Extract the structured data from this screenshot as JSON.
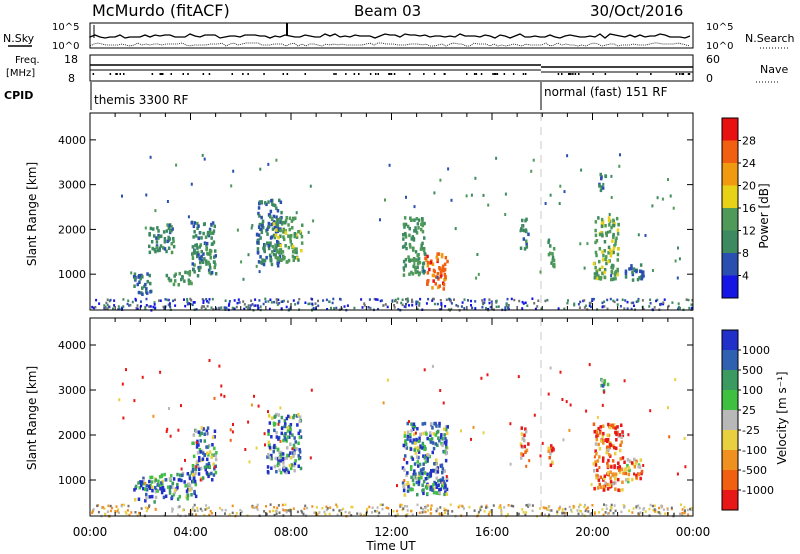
{
  "header": {
    "station": "McMurdo (fitACF)",
    "beam": "Beam 03",
    "date": "30/Oct/2016"
  },
  "top_panels": {
    "nsky_label": "N.Sky",
    "nsearch_label": "N.Search",
    "freq_label_1": "Freq.",
    "freq_label_2": "[MHz]",
    "nave_label": "Nave",
    "cpid_label": "CPID",
    "cpid_first": "themis 3300 RF",
    "cpid_second": "normal (fast) 151 RF",
    "nsky_ticks": [
      "10^5",
      "10^0"
    ],
    "nsearch_ticks": [
      "10^5",
      "10^0"
    ],
    "freq_ticks": [
      "18",
      "8"
    ],
    "nave_ticks": [
      "60",
      "0"
    ]
  },
  "colors": {
    "power_scale": [
      "#1515e6",
      "#2b4fb0",
      "#3e8a60",
      "#4f9a58",
      "#e8d218",
      "#f09a10",
      "#f06010",
      "#e81010"
    ],
    "velocity_scale": [
      "#2030c8",
      "#3060b0",
      "#3a9a60",
      "#40c040",
      "#b8b8b8",
      "#e8d040",
      "#f09020",
      "#f06010",
      "#e81818"
    ],
    "ground_scatter": "#707070"
  },
  "chart_data": [
    {
      "type": "heatmap",
      "name": "power",
      "ylabel": "Slant Range [km]",
      "xlabel": "",
      "x_ticks": [
        "00:00",
        "04:00",
        "08:00",
        "12:00",
        "16:00",
        "20:00",
        "00:00"
      ],
      "y_ticks": [
        1000,
        2000,
        3000,
        4000
      ],
      "ylim": [
        200,
        4600
      ],
      "xlim_hours": [
        0,
        24
      ],
      "colorbar_label": "Power [dB]",
      "colorbar_ticks": [
        4,
        8,
        12,
        16,
        20,
        24,
        28
      ],
      "colorbar_range": [
        0,
        32
      ],
      "regions": [
        {
          "t": [
            1.7,
            2.4
          ],
          "r": [
            550,
            1050
          ],
          "level": 8
        },
        {
          "t": [
            2.3,
            3.3
          ],
          "r": [
            1500,
            2150
          ],
          "level": 10
        },
        {
          "t": [
            3.0,
            4.0
          ],
          "r": [
            800,
            1100
          ],
          "level": 12
        },
        {
          "t": [
            4.0,
            5.0
          ],
          "r": [
            1000,
            2200
          ],
          "level": 10
        },
        {
          "t": [
            6.6,
            7.6
          ],
          "r": [
            1200,
            2700
          ],
          "level": 8
        },
        {
          "t": [
            7.2,
            8.4
          ],
          "r": [
            1300,
            2300
          ],
          "level": 14
        },
        {
          "t": [
            12.4,
            13.3
          ],
          "r": [
            1000,
            2300
          ],
          "level": 12
        },
        {
          "t": [
            13.3,
            14.2
          ],
          "r": [
            700,
            1500
          ],
          "level": 26
        },
        {
          "t": [
            17.1,
            17.4
          ],
          "r": [
            1600,
            2300
          ],
          "level": 10
        },
        {
          "t": [
            18.2,
            18.5
          ],
          "r": [
            1200,
            1800
          ],
          "level": 12
        },
        {
          "t": [
            20.0,
            21.0
          ],
          "r": [
            900,
            2300
          ],
          "level": 14
        },
        {
          "t": [
            20.2,
            20.5
          ],
          "r": [
            2900,
            3300
          ],
          "level": 8
        },
        {
          "t": [
            21.2,
            22.0
          ],
          "r": [
            900,
            1300
          ],
          "level": 8
        }
      ]
    },
    {
      "type": "heatmap",
      "name": "velocity",
      "ylabel": "Slant Range [km]",
      "xlabel": "Time UT",
      "x_ticks": [
        "00:00",
        "04:00",
        "08:00",
        "12:00",
        "16:00",
        "20:00",
        "00:00"
      ],
      "y_ticks": [
        1000,
        2000,
        3000,
        4000
      ],
      "ylim": [
        200,
        4600
      ],
      "xlim_hours": [
        0,
        24
      ],
      "colorbar_label": "Velocity [m s⁻¹]",
      "colorbar_ticks": [
        "1000",
        "500",
        "100",
        "25",
        "-25",
        "-100",
        "-500",
        "-1000"
      ],
      "regions": [
        {
          "t": [
            1.7,
            2.7
          ],
          "r": [
            550,
            1100
          ],
          "level": 2
        },
        {
          "t": [
            2.7,
            4.2
          ],
          "r": [
            600,
            1200
          ],
          "level": 2
        },
        {
          "t": [
            4.0,
            5.0
          ],
          "r": [
            1000,
            2200
          ],
          "level": 2
        },
        {
          "t": [
            7.0,
            8.4
          ],
          "r": [
            1200,
            2500
          ],
          "level": 2
        },
        {
          "t": [
            12.4,
            14.2
          ],
          "r": [
            700,
            2300
          ],
          "level": 2
        },
        {
          "t": [
            13.5,
            14.0
          ],
          "r": [
            800,
            1300
          ],
          "level": 0
        },
        {
          "t": [
            17.1,
            17.4
          ],
          "r": [
            1500,
            2200
          ],
          "level": 6
        },
        {
          "t": [
            18.2,
            18.5
          ],
          "r": [
            1300,
            1800
          ],
          "level": 6
        },
        {
          "t": [
            20.0,
            21.2
          ],
          "r": [
            800,
            2300
          ],
          "level": 7
        },
        {
          "t": [
            20.3,
            20.6
          ],
          "r": [
            2900,
            3300
          ],
          "level": 4
        },
        {
          "t": [
            21.2,
            22.0
          ],
          "r": [
            1000,
            1500
          ],
          "level": 6
        }
      ]
    }
  ]
}
